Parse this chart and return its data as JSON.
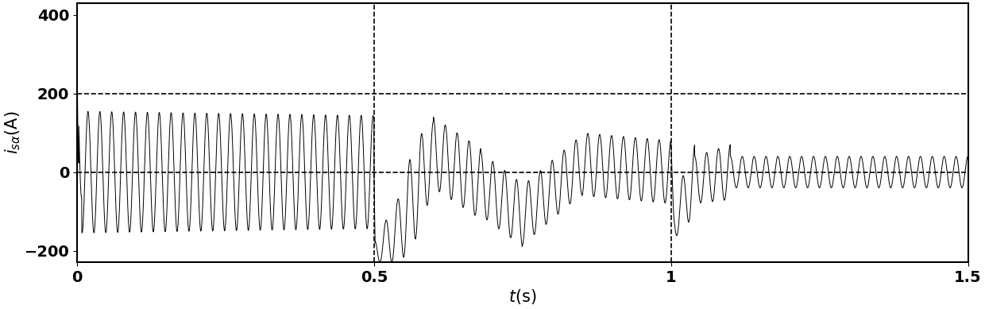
{
  "title": "",
  "xlabel": "t(s)",
  "ylabel": "i_{s\\alpha}(A)",
  "xlim": [
    0,
    1.5
  ],
  "ylim": [
    -230,
    430
  ],
  "yticks": [
    -200,
    0,
    200,
    400
  ],
  "xticks": [
    0,
    0.5,
    1.0,
    1.5
  ],
  "xtick_labels": [
    "0",
    "0.5",
    "1",
    "1.5"
  ],
  "vlines": [
    0.5,
    1.0
  ],
  "figsize": [
    12.4,
    3.89
  ],
  "dpi": 100,
  "line_color": "#000000",
  "bg_color": "#ffffff",
  "font_size": 14
}
